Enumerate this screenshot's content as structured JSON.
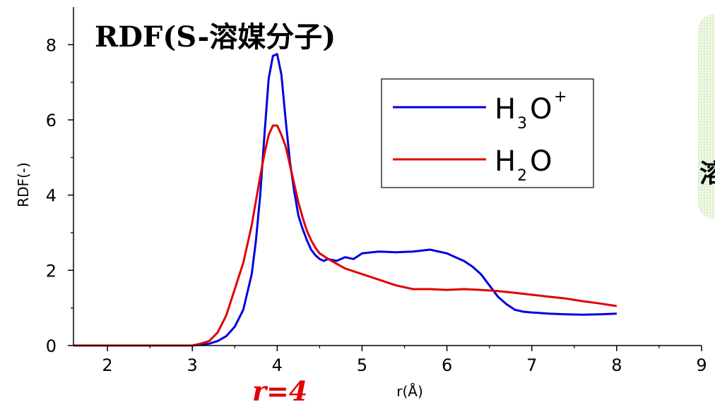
{
  "chart_data": {
    "type": "line",
    "title": "RDF(S-溶媒分子)",
    "xlabel": "r(Å)",
    "ylabel": "RDF(-)",
    "xlim": [
      1.6,
      9.0
    ],
    "ylim": [
      0,
      9.0
    ],
    "xticks": [
      2,
      3,
      4,
      5,
      6,
      7,
      8,
      9
    ],
    "yticks": [
      0,
      2,
      4,
      6,
      8
    ],
    "legend_position": "top-right",
    "annotation": {
      "text": "r=4",
      "color": "#e00000"
    },
    "side_text": "溶",
    "series": [
      {
        "name": "H3O+",
        "legend": {
          "base": "H",
          "sub": "3",
          "mid": "O",
          "sup": "+"
        },
        "color": "#0000e0",
        "x": [
          1.6,
          3.0,
          3.1,
          3.2,
          3.3,
          3.4,
          3.5,
          3.6,
          3.7,
          3.75,
          3.8,
          3.85,
          3.9,
          3.95,
          4.0,
          4.05,
          4.1,
          4.15,
          4.2,
          4.25,
          4.3,
          4.35,
          4.4,
          4.45,
          4.5,
          4.55,
          4.6,
          4.7,
          4.8,
          4.9,
          5.0,
          5.2,
          5.4,
          5.6,
          5.8,
          6.0,
          6.1,
          6.2,
          6.3,
          6.4,
          6.5,
          6.6,
          6.7,
          6.8,
          6.9,
          7.0,
          7.2,
          7.4,
          7.6,
          7.8,
          8.0
        ],
        "y": [
          0.0,
          0.0,
          0.02,
          0.05,
          0.12,
          0.25,
          0.5,
          0.95,
          1.9,
          2.8,
          4.0,
          5.6,
          7.1,
          7.7,
          7.75,
          7.2,
          6.0,
          4.9,
          4.1,
          3.45,
          3.1,
          2.8,
          2.55,
          2.4,
          2.3,
          2.25,
          2.3,
          2.25,
          2.35,
          2.3,
          2.45,
          2.5,
          2.48,
          2.5,
          2.55,
          2.45,
          2.35,
          2.25,
          2.1,
          1.9,
          1.6,
          1.3,
          1.1,
          0.95,
          0.9,
          0.88,
          0.85,
          0.83,
          0.82,
          0.83,
          0.85
        ]
      },
      {
        "name": "H2O",
        "legend": {
          "base": "H",
          "sub": "2",
          "mid": "O",
          "sup": ""
        },
        "color": "#e00000",
        "x": [
          1.6,
          3.0,
          3.1,
          3.2,
          3.3,
          3.4,
          3.5,
          3.6,
          3.7,
          3.8,
          3.85,
          3.9,
          3.95,
          4.0,
          4.05,
          4.1,
          4.15,
          4.2,
          4.25,
          4.3,
          4.35,
          4.4,
          4.45,
          4.5,
          4.6,
          4.8,
          5.0,
          5.2,
          5.4,
          5.6,
          5.8,
          6.0,
          6.2,
          6.4,
          6.6,
          6.8,
          7.0,
          7.2,
          7.4,
          7.6,
          7.8,
          8.0
        ],
        "y": [
          0.0,
          0.0,
          0.05,
          0.12,
          0.35,
          0.8,
          1.5,
          2.2,
          3.2,
          4.5,
          5.1,
          5.6,
          5.85,
          5.85,
          5.6,
          5.3,
          4.8,
          4.3,
          3.8,
          3.4,
          3.05,
          2.8,
          2.6,
          2.45,
          2.3,
          2.05,
          1.9,
          1.75,
          1.6,
          1.5,
          1.5,
          1.48,
          1.5,
          1.48,
          1.45,
          1.4,
          1.35,
          1.3,
          1.25,
          1.18,
          1.12,
          1.05
        ]
      }
    ]
  }
}
